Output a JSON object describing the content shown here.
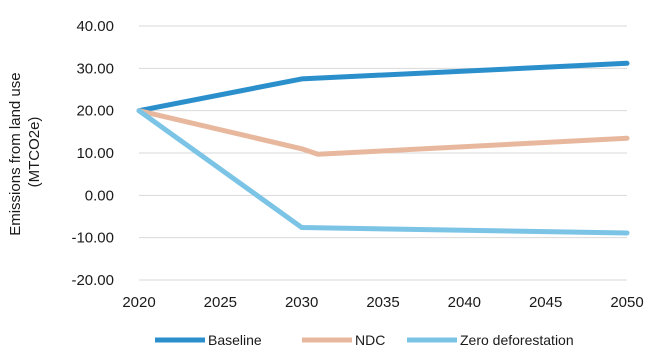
{
  "chart_data": {
    "type": "line",
    "title": "",
    "xlabel": "",
    "ylabel": [
      "Emissions from land use",
      "(MTCO2e)"
    ],
    "xlim": [
      2020,
      2050
    ],
    "ylim": [
      -20,
      40
    ],
    "x_ticks": [
      "2020",
      "2025",
      "2030",
      "2035",
      "2040",
      "2045",
      "2050"
    ],
    "y_ticks": [
      "40.00",
      "30.00",
      "20.00",
      "10.00",
      "0.00",
      "-10.00",
      "-20.00"
    ],
    "grid": "horizontal",
    "legend_position": "bottom",
    "series": [
      {
        "name": "Baseline",
        "color": "#2b8fcc",
        "x": [
          2020,
          2030,
          2050
        ],
        "y": [
          20.0,
          27.5,
          31.2
        ]
      },
      {
        "name": "NDC",
        "color": "#e8b89e",
        "x": [
          2020,
          2030,
          2031,
          2050
        ],
        "y": [
          20.0,
          11.0,
          9.7,
          13.5
        ]
      },
      {
        "name": "Zero deforestation",
        "color": "#7cc4e6",
        "x": [
          2020,
          2030,
          2050
        ],
        "y": [
          20.0,
          -7.6,
          -8.9
        ]
      }
    ]
  }
}
